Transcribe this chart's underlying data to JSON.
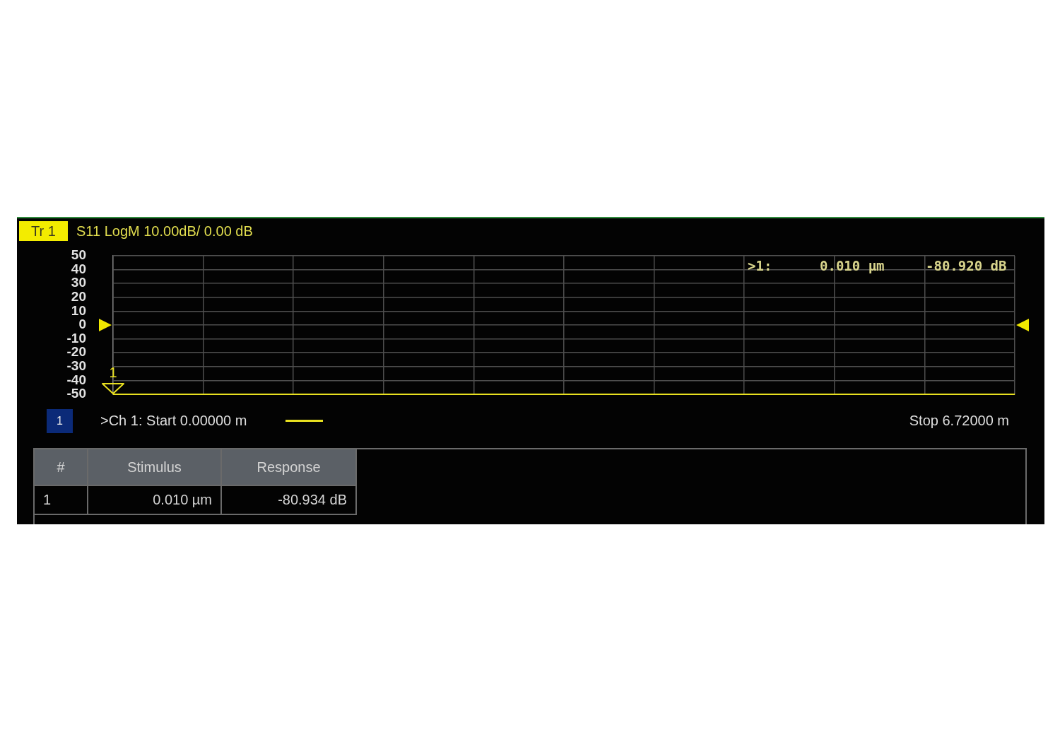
{
  "chart_data": {
    "type": "line",
    "title": "S11 LogM 10.00dB/ 0.00 dB",
    "categories": [
      null,
      null,
      null,
      null,
      null,
      null,
      null,
      null,
      null,
      null,
      null
    ],
    "series": [
      {
        "color": "#e8e020",
        "values": [
          -50,
          -50,
          -50,
          -50,
          -50,
          -50,
          -50,
          -50,
          -50,
          -50,
          -50
        ]
      }
    ],
    "ylim": [
      -50,
      50
    ],
    "yticks": [
      50,
      40,
      30,
      20,
      10,
      0,
      -10,
      -20,
      -30,
      -40,
      -50
    ],
    "grid": true,
    "tick_labels": "y",
    "annotations": [
      "Tr 1",
      ">1:",
      "0.010 µm",
      "-80.920 dB",
      "1",
      "1",
      ">Ch 1: Start 0.00000 m",
      "Stop 6.72000 m",
      "#",
      "Stimulus",
      "Response",
      "1",
      "0.010 µm",
      "-80.934 dB"
    ]
  }
}
